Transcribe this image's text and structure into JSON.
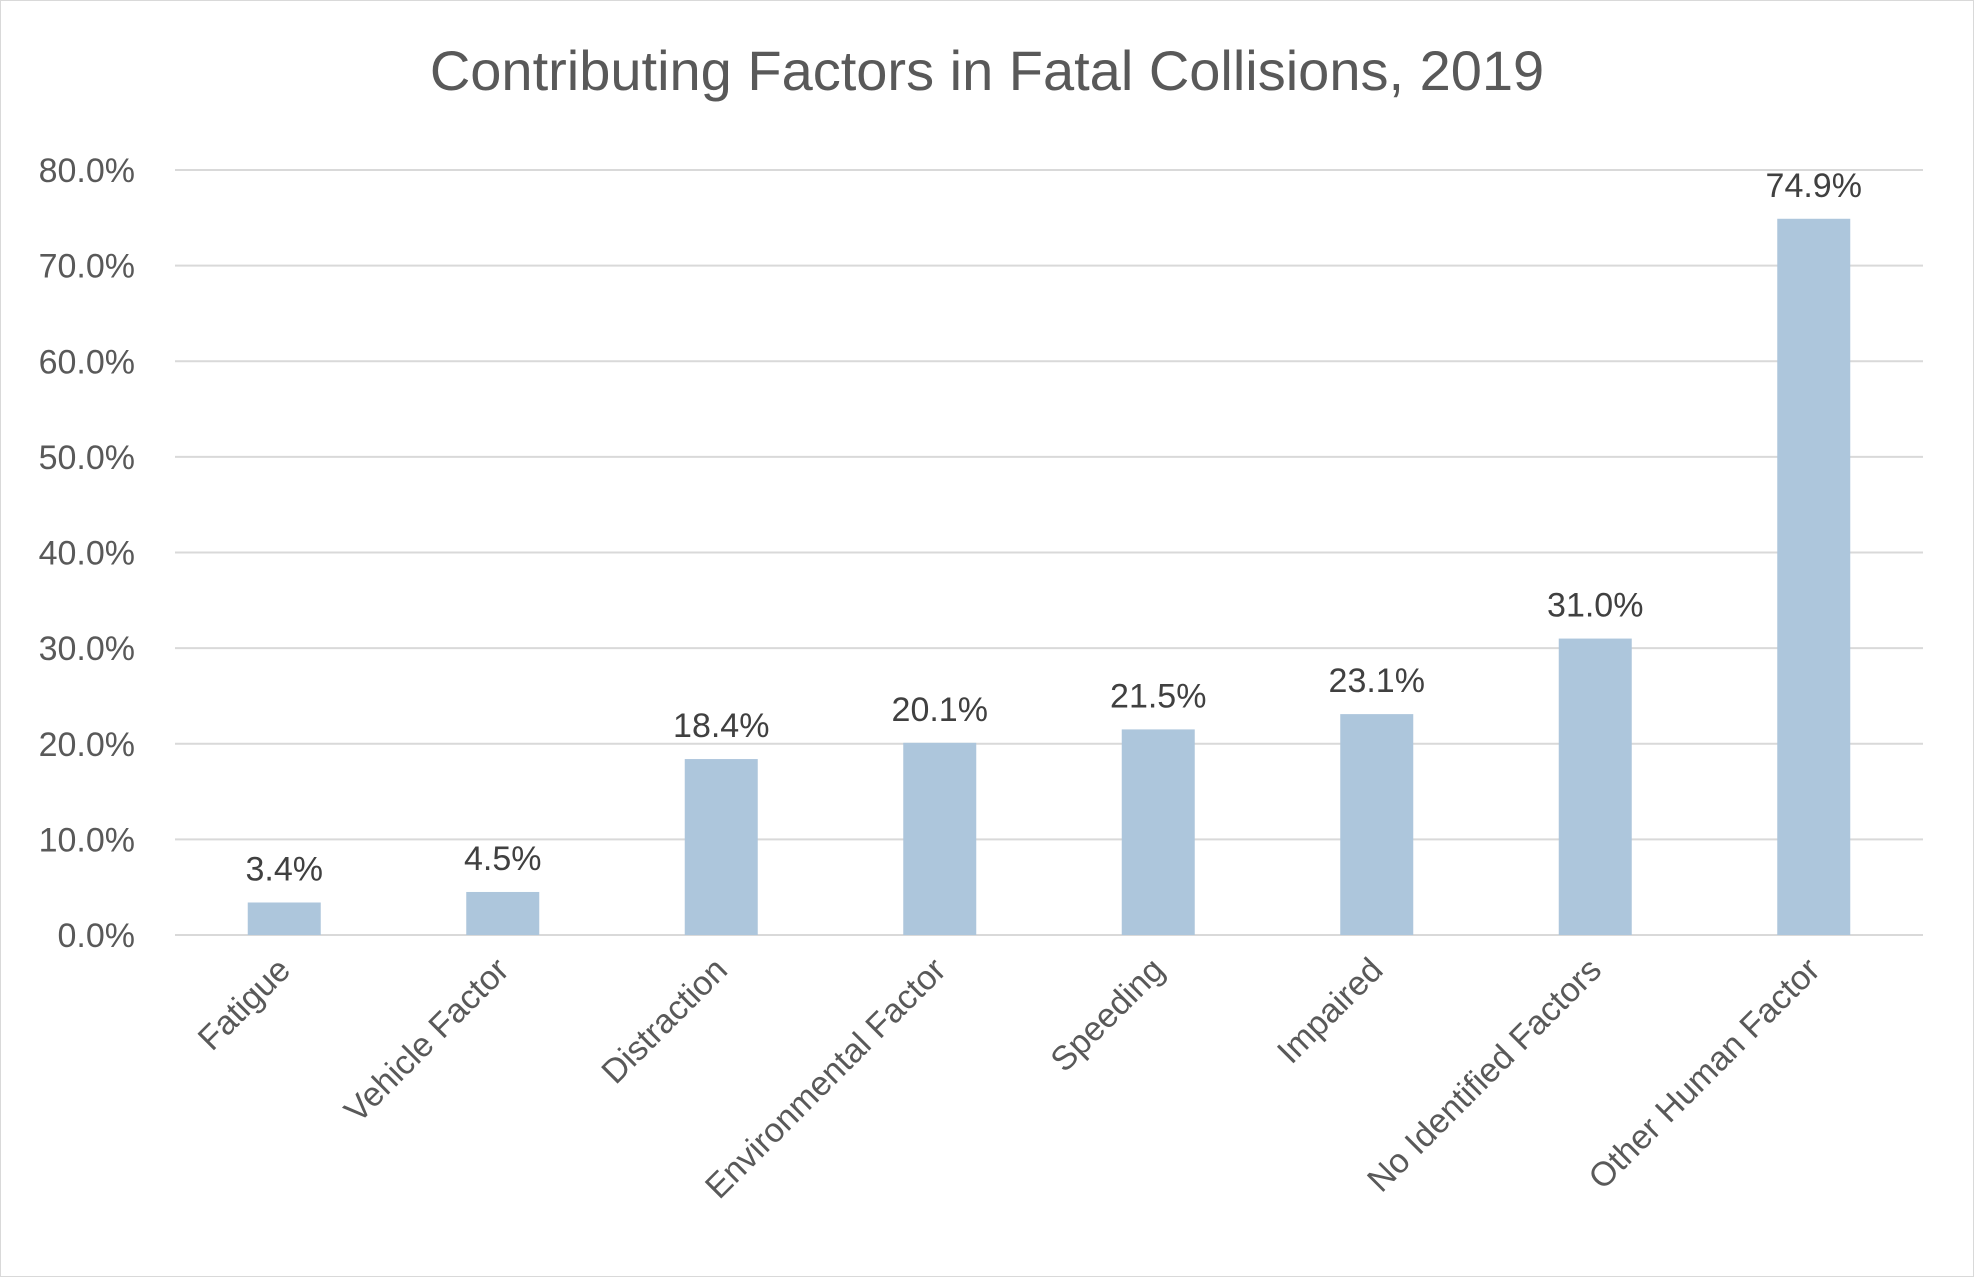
{
  "chart_data": {
    "type": "bar",
    "title": "Contributing Factors in Fatal Collisions, 2019",
    "xlabel": "",
    "ylabel": "",
    "categories": [
      "Fatigue",
      "Vehicle Factor",
      "Distraction",
      "Environmental Factor",
      "Speeding",
      "Impaired",
      "No Identified Factors",
      "Other Human Factor"
    ],
    "values": [
      3.4,
      4.5,
      18.4,
      20.1,
      21.5,
      23.1,
      31.0,
      74.9
    ],
    "data_labels": [
      "3.4%",
      "4.5%",
      "18.4%",
      "20.1%",
      "21.5%",
      "23.1%",
      "31.0%",
      "74.9%"
    ],
    "ylim": [
      0,
      80
    ],
    "yticks": [
      0,
      10,
      20,
      30,
      40,
      50,
      60,
      70,
      80
    ],
    "ytick_labels": [
      "0.0%",
      "10.0%",
      "20.0%",
      "30.0%",
      "40.0%",
      "50.0%",
      "60.0%",
      "70.0%",
      "80.0%"
    ],
    "grid": true,
    "legend": "none",
    "bar_color": "#adc6dc",
    "grid_color": "#d9d9d9"
  }
}
